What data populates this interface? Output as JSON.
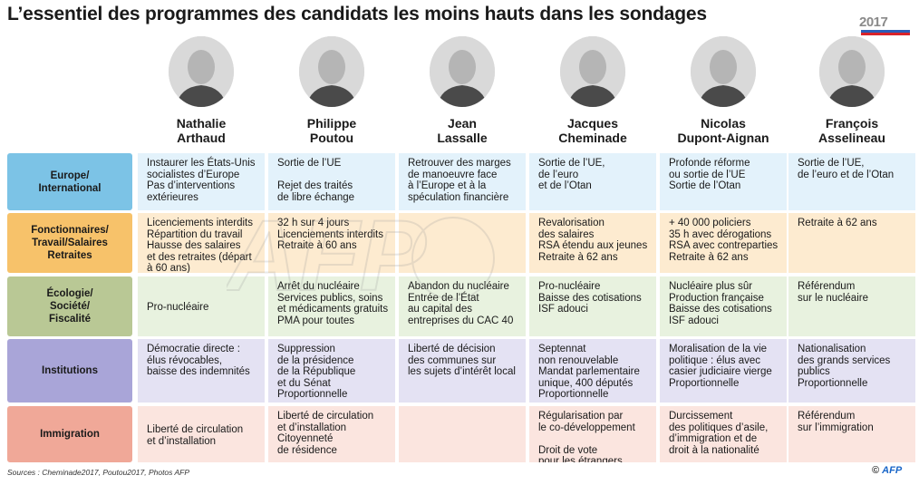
{
  "title": "L’essentiel des programmes des candidats les moins hauts dans les sondages",
  "badge": {
    "year": "2017",
    "colors": [
      "#2b5db8",
      "#ffffff",
      "#d8232a"
    ]
  },
  "candidates": [
    {
      "name": "Nathalie\nArthaud"
    },
    {
      "name": "Philippe\nPoutou"
    },
    {
      "name": "Jean\nLassalle"
    },
    {
      "name": "Jacques\nCheminade"
    },
    {
      "name": "Nicolas\nDupont-Aignan"
    },
    {
      "name": "François\nAsselineau"
    }
  ],
  "rows": [
    {
      "label": "Europe/\nInternational",
      "label_color": "#7cc3e6",
      "cell_color": "#e3f2fb",
      "cells": [
        "Instaurer les États-Unis\nsocialistes d’Europe\nPas d’interventions\nextérieures",
        "Sortie de l’UE\n\nRejet des traités\nde libre échange",
        "Retrouver des marges\nde manoeuvre face\nà l’Europe et à la\nspéculation financière",
        "Sortie de l’UE,\nde l’euro\net de l’Otan",
        "Profonde réforme\nou sortie de l’UE\nSortie de l’Otan",
        "Sortie de l’UE,\nde l’euro et de l’Otan"
      ]
    },
    {
      "label": "Fonctionnaires/\nTravail/Salaires\nRetraites",
      "label_color": "#f7c26a",
      "cell_color": "#fdebd0",
      "cells": [
        "Licenciements interdits\nRépartition du travail\nHausse des salaires\net des retraites (départ\nà 60 ans)",
        "32 h sur 4 jours\nLicenciements interdits\nRetraite à 60 ans",
        "",
        "Revalorisation\ndes salaires\nRSA étendu aux jeunes\nRetraite à 62 ans",
        "+ 40 000 policiers\n35 h avec dérogations\nRSA avec contreparties\nRetraite à 62 ans",
        "Retraite à 62 ans"
      ]
    },
    {
      "label": "Écologie/\nSociété/\nFiscalité",
      "label_color": "#b9c895",
      "cell_color": "#e8f2df",
      "cells": [
        "Pro-nucléaire",
        "Arrêt du nucléaire\nServices publics, soins\net médicaments gratuits\nPMA pour toutes",
        "Abandon du nucléaire\nEntrée de l’État\nau capital des\nentreprises du CAC 40",
        "Pro-nucléaire\nBaisse des cotisations\nISF adouci",
        "Nucléaire plus sûr\nProduction française\nBaisse des cotisations\nISF adouci",
        "Référendum\nsur le nucléaire"
      ]
    },
    {
      "label": "Institutions",
      "label_color": "#a9a5d8",
      "cell_color": "#e4e2f3",
      "cells": [
        "Démocratie directe :\nélus révocables,\nbaisse des indemnités",
        "Suppression\nde la présidence\nde la République\net du Sénat\nProportionnelle",
        "Liberté de décision\ndes communes sur\nles sujets d’intérêt local",
        "Septennat\nnon renouvelable\nMandat parlementaire\nunique, 400 députés\nProportionnelle",
        "Moralisation de la vie\npolitique : élus avec\ncasier judiciaire vierge\nProportionnelle",
        "Nationalisation\ndes grands services\npublics\nProportionnelle"
      ]
    },
    {
      "label": "Immigration",
      "label_color": "#f0a898",
      "cell_color": "#fbe5df",
      "cells": [
        "Liberté de circulation\net d’installation",
        "Liberté de circulation\net d’installation\nCitoyenneté\nde résidence",
        "",
        "Régularisation par\nle co-développement\n\nDroit de vote\npour les étrangers",
        "Durcissement\ndes politiques d’asile,\nd’immigration et de\ndroit à la nationalité",
        "Référendum\nsur l’immigration"
      ]
    }
  ],
  "sources": "Sources : Cheminade2017, Poutou2017, Photos AFP",
  "copyright": {
    "symbol": "©",
    "agency": "AFP"
  },
  "watermark": {
    "text": "AFP"
  }
}
